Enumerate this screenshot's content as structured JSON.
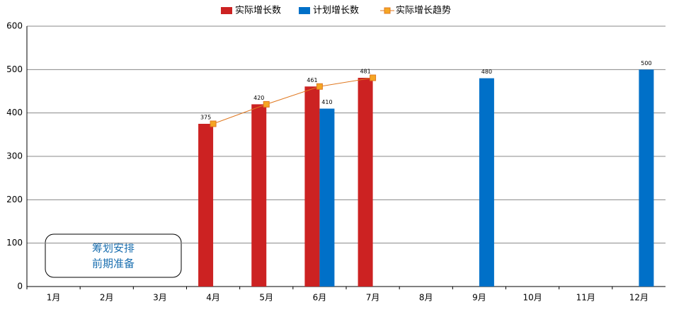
{
  "chart_data": {
    "type": "bar",
    "categories": [
      "1月",
      "2月",
      "3月",
      "4月",
      "5月",
      "6月",
      "7月",
      "8月",
      "9月",
      "10月",
      "11月",
      "12月"
    ],
    "series": [
      {
        "name": "实际增长数",
        "color": "#cc2222",
        "type": "bar",
        "values": [
          null,
          null,
          null,
          375,
          420,
          461,
          481,
          null,
          null,
          null,
          null,
          null
        ]
      },
      {
        "name": "计划增长数",
        "color": "#0070c8",
        "type": "bar",
        "values": [
          null,
          null,
          null,
          null,
          null,
          410,
          null,
          null,
          480,
          null,
          null,
          500
        ]
      },
      {
        "name": "实际增长趋势",
        "color": "#e07820",
        "type": "line",
        "values": [
          null,
          null,
          null,
          375,
          420,
          461,
          481,
          null,
          null,
          null,
          null,
          null
        ]
      }
    ],
    "ylim": [
      0,
      600
    ],
    "yticks": [
      0,
      100,
      200,
      300,
      400,
      500,
      600
    ],
    "grid": true,
    "legend": "top",
    "annotation": [
      "筹划安排",
      "前期准备"
    ]
  }
}
